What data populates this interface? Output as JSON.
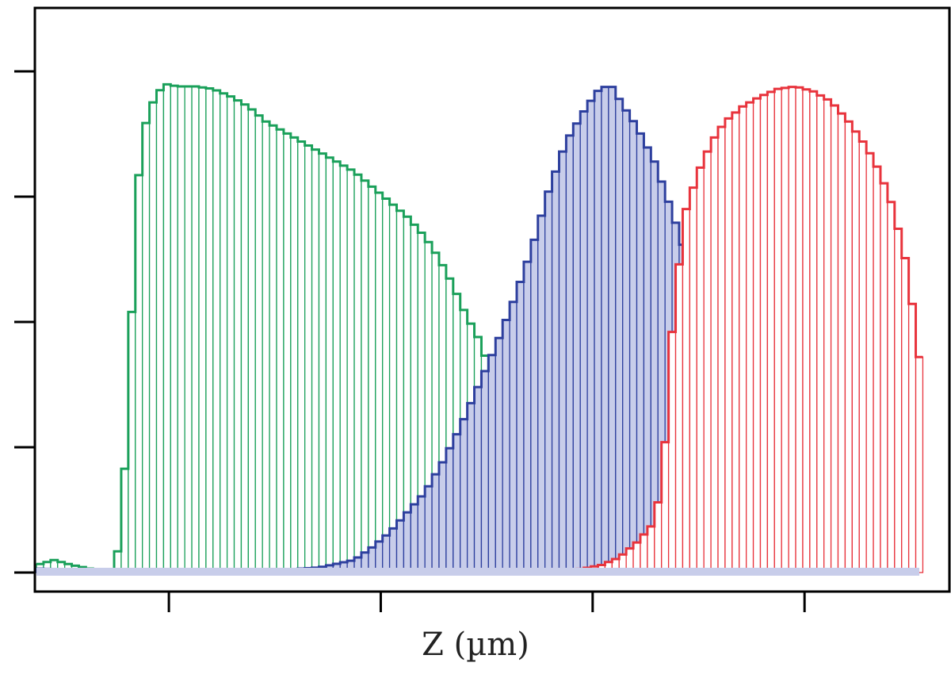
{
  "chart_data": {
    "type": "bar",
    "title": "",
    "xlabel": "Z (µm)",
    "ylabel": "",
    "xlim": [
      0,
      100
    ],
    "ylim": [
      0,
      100
    ],
    "x_ticks": [
      15,
      39,
      63,
      87
    ],
    "y_ticks": [
      0,
      25,
      50,
      75,
      100
    ],
    "bin_width": 0.8,
    "grid": false,
    "legend": "none",
    "series": [
      {
        "color": "#1aa05a",
        "fill": "#ffffff",
        "points": [
          [
            0,
            1.5
          ],
          [
            2,
            2.5
          ],
          [
            4,
            1.5
          ],
          [
            6,
            0.8
          ],
          [
            8,
            0.6
          ],
          [
            9,
            0.4
          ],
          [
            9.5,
            10
          ],
          [
            10.2,
            25
          ],
          [
            10.8,
            52
          ],
          [
            11.5,
            78
          ],
          [
            12.5,
            91
          ],
          [
            13.5,
            95
          ],
          [
            14.5,
            97.5
          ],
          [
            16,
            97
          ],
          [
            18,
            97
          ],
          [
            20,
            96.5
          ],
          [
            22,
            95
          ],
          [
            24,
            93
          ],
          [
            26,
            90
          ],
          [
            28,
            88
          ],
          [
            30,
            86
          ],
          [
            32,
            84
          ],
          [
            34,
            82
          ],
          [
            36,
            80
          ],
          [
            38,
            77
          ],
          [
            40,
            74
          ],
          [
            42,
            71
          ],
          [
            44,
            67
          ],
          [
            45.5,
            63
          ],
          [
            47,
            58
          ],
          [
            48.5,
            52
          ],
          [
            50,
            47
          ],
          [
            51.5,
            40
          ],
          [
            53,
            30
          ],
          [
            54.5,
            20
          ],
          [
            56,
            11
          ],
          [
            57.5,
            5
          ],
          [
            59,
            2.5
          ],
          [
            61,
            1.2
          ],
          [
            63,
            0.6
          ],
          [
            65,
            0.3
          ]
        ]
      },
      {
        "color": "#2d3f9e",
        "fill": "#c8cdea",
        "points": [
          [
            0,
            0.8
          ],
          [
            5,
            0.5
          ],
          [
            10,
            0.3
          ],
          [
            20,
            0.4
          ],
          [
            28,
            0.6
          ],
          [
            32,
            1
          ],
          [
            36,
            2.5
          ],
          [
            38,
            5
          ],
          [
            40,
            8
          ],
          [
            42,
            12
          ],
          [
            44,
            16
          ],
          [
            46,
            22
          ],
          [
            48,
            29
          ],
          [
            50,
            37
          ],
          [
            52,
            45
          ],
          [
            54,
            54
          ],
          [
            56,
            64
          ],
          [
            58,
            76
          ],
          [
            60,
            86
          ],
          [
            62,
            92
          ],
          [
            63.5,
            96
          ],
          [
            65,
            97.5
          ],
          [
            66.5,
            93
          ],
          [
            68,
            89
          ],
          [
            70,
            82
          ],
          [
            72,
            72
          ],
          [
            74,
            61
          ],
          [
            76,
            47
          ],
          [
            78,
            33
          ],
          [
            80,
            21
          ],
          [
            82,
            13
          ],
          [
            84,
            7
          ],
          [
            86,
            4
          ],
          [
            88,
            2.5
          ],
          [
            90,
            1.5
          ],
          [
            93,
            0.9
          ],
          [
            96,
            0.9
          ],
          [
            100,
            0.8
          ]
        ]
      },
      {
        "color": "#e8333c",
        "fill": "#ffffff",
        "points": [
          [
            58,
            0.2
          ],
          [
            62,
            0.8
          ],
          [
            64,
            1.5
          ],
          [
            66,
            3
          ],
          [
            68,
            6
          ],
          [
            70,
            10
          ],
          [
            71,
            20
          ],
          [
            71.5,
            35
          ],
          [
            72,
            48
          ],
          [
            72.7,
            60
          ],
          [
            73.5,
            72
          ],
          [
            75,
            80
          ],
          [
            76.5,
            86
          ],
          [
            78,
            90
          ],
          [
            80,
            93
          ],
          [
            82,
            95
          ],
          [
            84,
            96.5
          ],
          [
            86,
            97
          ],
          [
            88,
            96
          ],
          [
            90,
            94
          ],
          [
            92,
            90
          ],
          [
            94,
            85
          ],
          [
            95.5,
            80
          ],
          [
            97,
            73
          ],
          [
            98.5,
            62
          ],
          [
            99.5,
            50
          ],
          [
            100,
            43
          ]
        ]
      }
    ]
  }
}
